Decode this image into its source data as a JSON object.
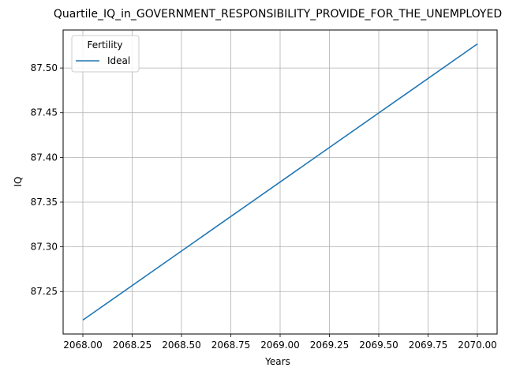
{
  "chart_data": {
    "type": "line",
    "title": "Quartile_IQ_in_GOVERNMENT_RESPONSIBILITY_PROVIDE_FOR_THE_UNEMPLOYED",
    "xlabel": "Years",
    "ylabel": "IQ",
    "xlim": [
      2067.9,
      2070.1
    ],
    "ylim": [
      87.2025,
      87.5425
    ],
    "x_ticks": [
      2068.0,
      2068.25,
      2068.5,
      2068.75,
      2069.0,
      2069.25,
      2069.5,
      2069.75,
      2070.0
    ],
    "x_tick_labels": [
      "2068.00",
      "2068.25",
      "2068.50",
      "2068.75",
      "2069.00",
      "2069.25",
      "2069.50",
      "2069.75",
      "2070.00"
    ],
    "y_ticks": [
      87.25,
      87.3,
      87.35,
      87.4,
      87.45,
      87.5
    ],
    "y_tick_labels": [
      "87.25",
      "87.30",
      "87.35",
      "87.40",
      "87.45",
      "87.50"
    ],
    "grid": true,
    "legend": {
      "title": "Fertility",
      "placement": "top-left"
    },
    "series": [
      {
        "name": "Ideal",
        "color": "#1f77b4",
        "x": [
          2068,
          2070
        ],
        "y": [
          87.218,
          87.527
        ]
      }
    ]
  }
}
